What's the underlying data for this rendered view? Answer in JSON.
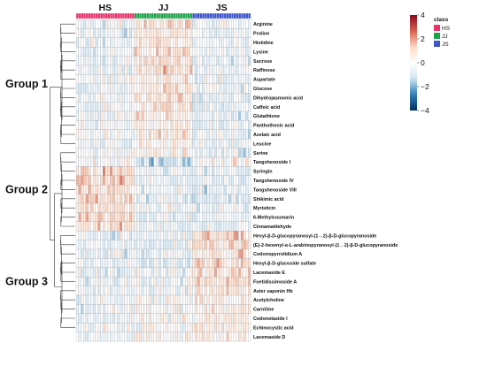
{
  "chart_data": {
    "type": "heatmap",
    "title": "",
    "color_scale": {
      "min": -4,
      "max": 4,
      "ticks": [
        4,
        2,
        0,
        -2,
        -4
      ],
      "colors": [
        "#053061",
        "#2e7fb8",
        "#d1e5f0",
        "#ffffff",
        "#fddbc7",
        "#d6604d",
        "#8b0a1f"
      ]
    },
    "legend": {
      "title": "class",
      "placement": "top-right",
      "items": [
        {
          "label": "HS",
          "color": "#e8336b"
        },
        {
          "label": "JJ",
          "color": "#1fa34a"
        },
        {
          "label": "JS",
          "color": "#3d55c9"
        }
      ]
    },
    "group_labels": [
      "HS",
      "JJ",
      "JS"
    ],
    "column_groups": {
      "HS": 24,
      "JJ": 24,
      "JS": 24
    },
    "row_clusters": [
      {
        "label": "Group 1",
        "rows": [
          0,
          13
        ]
      },
      {
        "label": "Group 2",
        "rows": [
          14,
          22
        ]
      },
      {
        "label": "Group 3",
        "rows": [
          23,
          33
        ]
      }
    ],
    "rows": [
      "Arginine",
      "Proline",
      "Histidine",
      "Lysine",
      "Sucrose",
      "Raffinose",
      "Aspartate",
      "Glucose",
      "Dihydrojasmonic acid",
      "Caffeic acid",
      "Glutathione",
      "Panthothenic acid",
      "Azelaic acid",
      "Leucine",
      "Serine",
      "Tangshenoside I",
      "Syringin",
      "Tangshenoside IV",
      "Tangshenoside VIII",
      "Shikimic acid",
      "Myristicin",
      "6-Methylcoumarin",
      "Cinnamaldehyde",
      "Hexyl-β-D-glucopyranosyl-(1→2)-β-D-glucopyranoside",
      "(E)-2-hexenyl-α-L-arabinopyranosyl-(1→2)-β-D-glucopyranoside",
      "Codonopyrrolidium A",
      "Hexyl-β-D-glucoside sulfate",
      "Lacemaside E",
      "Foetidissimoside A",
      "Aster saponin Hb",
      "Acetylcholine",
      "Carnitine",
      "Codonolaside I",
      "Echinocystic acid",
      "Lacemaside D"
    ],
    "row_means": [
      [
        -0.3,
        0.9,
        -0.3
      ],
      [
        -0.3,
        0.8,
        -0.4
      ],
      [
        -0.3,
        0.7,
        -0.3
      ],
      [
        -0.3,
        0.7,
        -0.3
      ],
      [
        -0.3,
        0.8,
        -0.4
      ],
      [
        -0.3,
        0.8,
        -0.4
      ],
      [
        -0.3,
        0.7,
        -0.3
      ],
      [
        -0.3,
        0.7,
        -0.3
      ],
      [
        -0.2,
        0.8,
        -0.5
      ],
      [
        -0.2,
        0.8,
        -0.5
      ],
      [
        -0.2,
        0.7,
        -0.4
      ],
      [
        -0.2,
        0.7,
        -0.4
      ],
      [
        -0.2,
        0.7,
        -0.4
      ],
      [
        -0.1,
        0.6,
        -0.4
      ],
      [
        -0.1,
        0.5,
        -0.4
      ],
      [
        0.2,
        -1.2,
        0.2
      ],
      [
        1.0,
        -0.5,
        -0.5
      ],
      [
        1.1,
        -0.5,
        -0.5
      ],
      [
        1.1,
        -0.5,
        -0.5
      ],
      [
        1.2,
        -0.5,
        -0.6
      ],
      [
        1.0,
        -0.4,
        -0.5
      ],
      [
        1.0,
        -0.4,
        -0.5
      ],
      [
        0.9,
        -0.4,
        -0.5
      ],
      [
        -0.4,
        -0.5,
        1.0
      ],
      [
        -0.4,
        -0.5,
        1.0
      ],
      [
        -0.4,
        -0.4,
        0.9
      ],
      [
        -0.4,
        -0.5,
        1.0
      ],
      [
        -0.4,
        -0.4,
        0.9
      ],
      [
        -0.4,
        -0.4,
        0.9
      ],
      [
        -0.3,
        -0.3,
        0.8
      ],
      [
        -0.4,
        0.1,
        0.5
      ],
      [
        -0.4,
        0.1,
        0.5
      ],
      [
        -0.4,
        0.0,
        0.6
      ],
      [
        -0.3,
        0.0,
        0.5
      ],
      [
        -0.3,
        0.0,
        0.5
      ]
    ]
  }
}
